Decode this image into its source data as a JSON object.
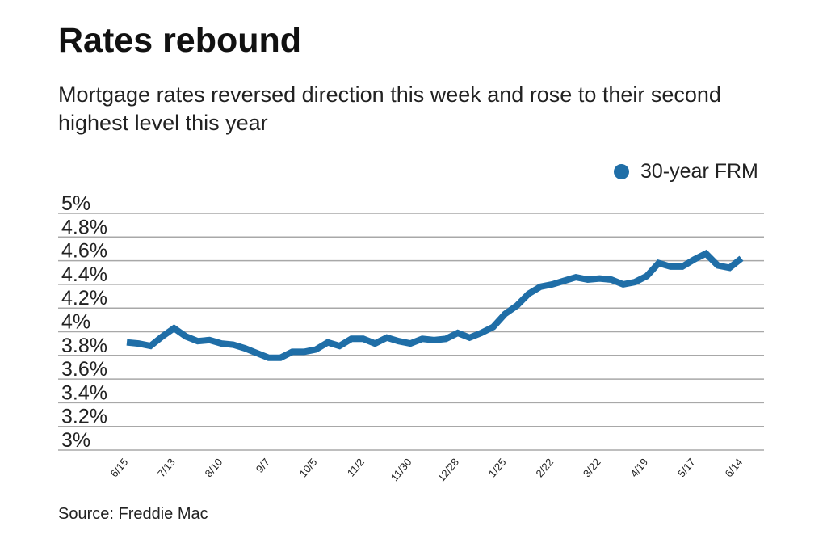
{
  "chart_data": {
    "type": "line",
    "title": "Rates rebound",
    "subtitle": "Mortgage rates reversed direction this week and rose to their second highest level this year",
    "source": "Source: Freddie Mac",
    "legend_position": "top-right",
    "grid": true,
    "ylim": [
      3,
      5
    ],
    "yticks": [
      "5%",
      "4.8%",
      "4.6%",
      "4.4%",
      "4.2%",
      "4%",
      "3.8%",
      "3.6%",
      "3.4%",
      "3.2%",
      "3%"
    ],
    "xticks": [
      "6/15",
      "7/13",
      "8/10",
      "9/7",
      "10/5",
      "11/2",
      "11/30",
      "12/28",
      "1/25",
      "2/22",
      "3/22",
      "4/19",
      "5/17",
      "6/14"
    ],
    "series": [
      {
        "name": "30-year FRM",
        "color": "#1f6ea7",
        "x": [
          "6/15",
          "6/22",
          "6/29",
          "7/6",
          "7/13",
          "7/20",
          "7/27",
          "8/3",
          "8/10",
          "8/17",
          "8/24",
          "8/31",
          "9/7",
          "9/14",
          "9/21",
          "9/28",
          "10/5",
          "10/12",
          "10/19",
          "10/26",
          "11/2",
          "11/9",
          "11/16",
          "11/22",
          "11/30",
          "12/7",
          "12/14",
          "12/21",
          "12/28",
          "1/4",
          "1/11",
          "1/18",
          "1/25",
          "2/1",
          "2/8",
          "2/15",
          "2/22",
          "3/1",
          "3/8",
          "3/15",
          "3/22",
          "3/29",
          "4/5",
          "4/12",
          "4/19",
          "4/26",
          "5/3",
          "5/10",
          "5/17",
          "5/24",
          "5/31",
          "6/7",
          "6/14"
        ],
        "values": [
          3.91,
          3.9,
          3.88,
          3.96,
          4.03,
          3.96,
          3.92,
          3.93,
          3.9,
          3.89,
          3.86,
          3.82,
          3.78,
          3.78,
          3.83,
          3.83,
          3.85,
          3.91,
          3.88,
          3.94,
          3.94,
          3.9,
          3.95,
          3.92,
          3.9,
          3.94,
          3.93,
          3.94,
          3.99,
          3.95,
          3.99,
          4.04,
          4.15,
          4.22,
          4.32,
          4.38,
          4.4,
          4.43,
          4.46,
          4.44,
          4.45,
          4.44,
          4.4,
          4.42,
          4.47,
          4.58,
          4.55,
          4.55,
          4.61,
          4.66,
          4.56,
          4.54,
          4.62
        ]
      }
    ]
  }
}
